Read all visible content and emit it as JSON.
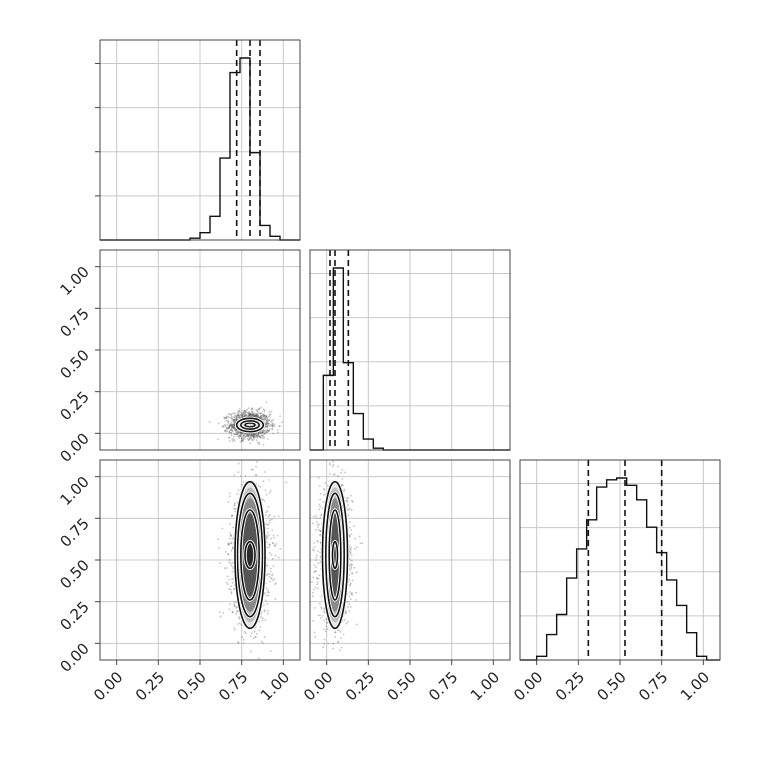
{
  "chart_data": {
    "type": "corner",
    "grid": true,
    "ticks": [
      "0.00",
      "0.25",
      "0.50",
      "0.75",
      "1.00"
    ],
    "tick_values": [
      0,
      0.25,
      0.5,
      0.75,
      1.0
    ],
    "range": [
      -0.1,
      1.1
    ],
    "parameters": [
      {
        "histogram": {
          "bin_edges": [
            0.44,
            0.5,
            0.56,
            0.62,
            0.68,
            0.74,
            0.8,
            0.86,
            0.92,
            0.98
          ],
          "counts": [
            0.01,
            0.04,
            0.13,
            0.45,
            0.92,
            1.0,
            0.48,
            0.08,
            0.02
          ],
          "quantiles": [
            0.72,
            0.8,
            0.86
          ]
        },
        "marginal_shown": true
      },
      {
        "histogram": {
          "bin_edges": [
            -0.02,
            0.04,
            0.1,
            0.16,
            0.22,
            0.28,
            0.34
          ],
          "counts": [
            0.41,
            1.0,
            0.48,
            0.2,
            0.06,
            0.01
          ],
          "quantiles": [
            0.02,
            0.05,
            0.13
          ]
        },
        "marginal_shown": true
      },
      {
        "histogram": {
          "bin_edges": [
            0.0,
            0.06,
            0.12,
            0.18,
            0.24,
            0.3,
            0.36,
            0.42,
            0.48,
            0.54,
            0.6,
            0.66,
            0.72,
            0.78,
            0.84,
            0.9,
            0.96,
            1.02
          ],
          "counts": [
            0.02,
            0.14,
            0.25,
            0.45,
            0.61,
            0.77,
            0.95,
            0.99,
            1.0,
            0.96,
            0.88,
            0.73,
            0.59,
            0.44,
            0.3,
            0.15,
            0.02
          ],
          "quantiles": [
            0.31,
            0.53,
            0.75
          ]
        },
        "marginal_shown": true
      }
    ],
    "pairs": [
      {
        "row": 1,
        "col": 0,
        "center": [
          0.8,
          0.05
        ],
        "spread": [
          0.06,
          0.04
        ],
        "contour_radii": [
          [
            0.03,
            0.012
          ],
          [
            0.055,
            0.025
          ],
          [
            0.08,
            0.04
          ]
        ]
      },
      {
        "row": 2,
        "col": 0,
        "center": [
          0.8,
          0.53
        ],
        "spread": [
          0.06,
          0.2
        ],
        "contour_radii": [
          [
            0.03,
            0.08
          ],
          [
            0.055,
            0.27
          ],
          [
            0.075,
            0.37
          ],
          [
            0.09,
            0.44
          ]
        ]
      },
      {
        "row": 2,
        "col": 1,
        "center": [
          0.05,
          0.53
        ],
        "spread": [
          0.05,
          0.2
        ],
        "contour_radii": [
          [
            0.015,
            0.08
          ],
          [
            0.035,
            0.27
          ],
          [
            0.055,
            0.37
          ],
          [
            0.075,
            0.44
          ]
        ]
      }
    ]
  }
}
